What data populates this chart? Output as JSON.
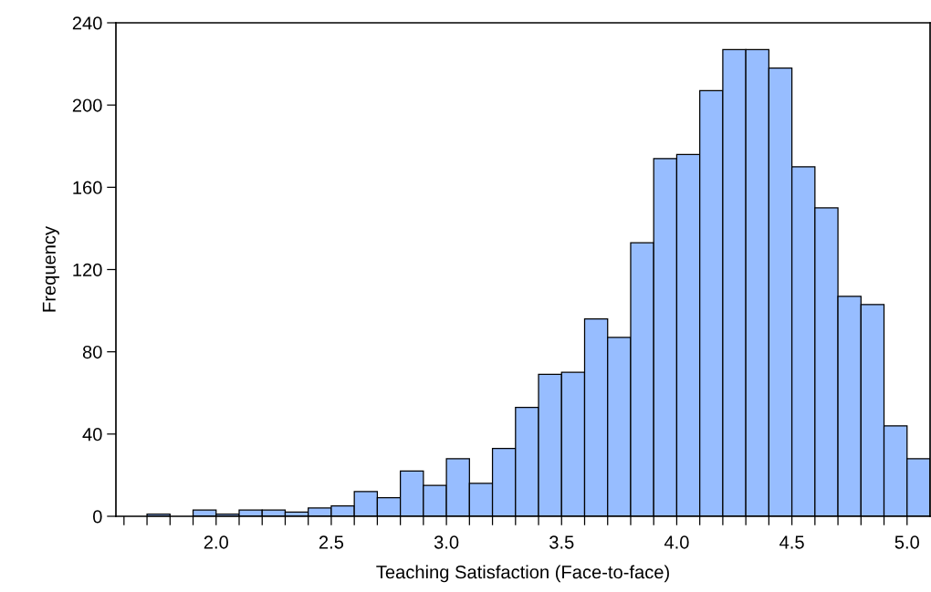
{
  "chart_data": {
    "type": "histogram",
    "xlabel": "Teaching Satisfaction (Face-to-face)",
    "ylabel": "Frequency",
    "color": "#97bdff",
    "bins": [
      1.7,
      1.8,
      1.9,
      2.0,
      2.1,
      2.2,
      2.3,
      2.4,
      2.5,
      2.6,
      2.7,
      2.8,
      2.9,
      3.0,
      3.1,
      3.2,
      3.3,
      3.4,
      3.5,
      3.6,
      3.7,
      3.8,
      3.9,
      4.0,
      4.1,
      4.2,
      4.3,
      4.4,
      4.5,
      4.6,
      4.7,
      4.8,
      4.9,
      5.0,
      5.1
    ],
    "values": [
      1,
      0,
      3,
      1,
      3,
      3,
      2,
      4,
      5,
      12,
      9,
      22,
      15,
      28,
      16,
      33,
      53,
      69,
      70,
      96,
      87,
      133,
      174,
      176,
      207,
      227,
      227,
      218,
      170,
      150,
      107,
      103,
      44,
      28
    ],
    "xlim": [
      1.565,
      5.1
    ],
    "ylim": [
      0,
      240
    ],
    "yticks": [
      0,
      40,
      80,
      120,
      160,
      200,
      240
    ],
    "xticks": [
      {
        "value": 1.6,
        "label": null
      },
      {
        "value": 1.7,
        "label": null
      },
      {
        "value": 1.8,
        "label": null
      },
      {
        "value": 1.9,
        "label": null
      },
      {
        "value": 2.0,
        "label": "2.0"
      },
      {
        "value": 2.1,
        "label": null
      },
      {
        "value": 2.2,
        "label": null
      },
      {
        "value": 2.3,
        "label": null
      },
      {
        "value": 2.4,
        "label": null
      },
      {
        "value": 2.5,
        "label": "2.5"
      },
      {
        "value": 2.6,
        "label": null
      },
      {
        "value": 2.7,
        "label": null
      },
      {
        "value": 2.8,
        "label": null
      },
      {
        "value": 2.9,
        "label": null
      },
      {
        "value": 3.0,
        "label": "3.0"
      },
      {
        "value": 3.1,
        "label": null
      },
      {
        "value": 3.2,
        "label": null
      },
      {
        "value": 3.3,
        "label": null
      },
      {
        "value": 3.4,
        "label": null
      },
      {
        "value": 3.5,
        "label": "3.5"
      },
      {
        "value": 3.6,
        "label": null
      },
      {
        "value": 3.7,
        "label": null
      },
      {
        "value": 3.8,
        "label": null
      },
      {
        "value": 3.9,
        "label": null
      },
      {
        "value": 4.0,
        "label": "4.0"
      },
      {
        "value": 4.1,
        "label": null
      },
      {
        "value": 4.2,
        "label": null
      },
      {
        "value": 4.3,
        "label": null
      },
      {
        "value": 4.4,
        "label": null
      },
      {
        "value": 4.5,
        "label": "4.5"
      },
      {
        "value": 4.6,
        "label": null
      },
      {
        "value": 4.7,
        "label": null
      },
      {
        "value": 4.8,
        "label": null
      },
      {
        "value": 4.9,
        "label": null
      },
      {
        "value": 5.0,
        "label": "5.0"
      }
    ],
    "grid": false
  }
}
